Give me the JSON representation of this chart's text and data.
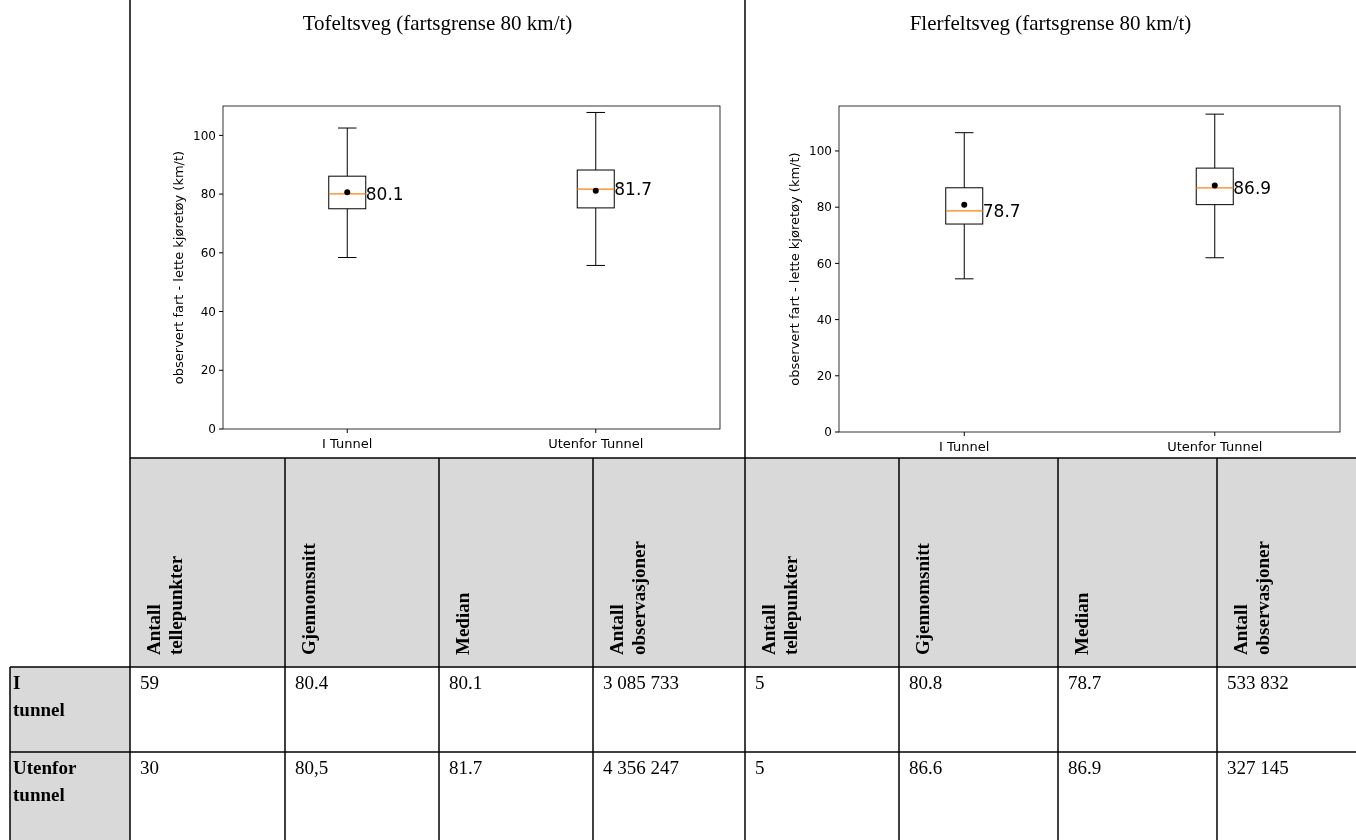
{
  "chart_data": [
    {
      "type": "box",
      "title": "Tofeltsveg (fartsgrense 80 km/t)",
      "ylabel": "observert fart - lette kjøretøy (km/t)",
      "categories": [
        "I Tunnel",
        "Utenfor Tunnel"
      ],
      "ylim": [
        0,
        110
      ],
      "yticks": [
        0,
        20,
        40,
        60,
        80,
        100
      ],
      "grid": false,
      "marker": "circle",
      "color": "#000000",
      "boxes": [
        {
          "low": 58.4,
          "q1": 75.0,
          "median": 80.1,
          "q3": 86.1,
          "high": 102.5,
          "mean": 80.6
        },
        {
          "low": 55.7,
          "q1": 75.3,
          "median": 81.7,
          "q3": 88.2,
          "high": 107.8,
          "mean": 81.1
        }
      ],
      "annotations": [
        {
          "text": "80.1",
          "x": "I Tunnel",
          "y": 80.1
        },
        {
          "text": "81.7",
          "x": "Utenfor Tunnel",
          "y": 81.7
        }
      ]
    },
    {
      "type": "box",
      "title": "Flerfeltsveg (fartsgrense 80 km/t)",
      "ylabel": "observert fart - lette kjøretøy (km/t)",
      "categories": [
        "I Tunnel",
        "Utenfor Tunnel"
      ],
      "ylim": [
        0,
        116
      ],
      "yticks": [
        0,
        20,
        40,
        60,
        80,
        100
      ],
      "grid": false,
      "marker": "circle",
      "color": "#000000",
      "boxes": [
        {
          "low": 54.5,
          "q1": 74.0,
          "median": 78.7,
          "q3": 86.9,
          "high": 106.5,
          "mean": 80.9
        },
        {
          "low": 62.0,
          "q1": 80.9,
          "median": 86.9,
          "q3": 93.9,
          "high": 113.1,
          "mean": 87.7
        }
      ],
      "annotations": [
        {
          "text": "78.7",
          "x": "I Tunnel",
          "y": 78.7
        },
        {
          "text": "86.9",
          "x": "Utenfor Tunnel",
          "y": 86.9
        }
      ]
    },
    {
      "type": "other",
      "categories": [
        "Antall tellepunkter",
        "Gjennomsnitt",
        "Median",
        "Antall observasjoner",
        "Antall tellepunkter",
        "Gjennomsnitt",
        "Median",
        "Antall observasjoner"
      ],
      "y_categories": [
        "I tunnel",
        "Utenfor tunnel"
      ],
      "cell_labels": [
        [
          "59",
          "80.4",
          "80.1",
          "3 085 733",
          "5",
          "80.8",
          "78.7",
          "533 832"
        ],
        [
          "30",
          "80,5",
          "81.7",
          "4 356 247",
          "5",
          "86.6",
          "86.9",
          "327 145"
        ]
      ]
    }
  ]
}
